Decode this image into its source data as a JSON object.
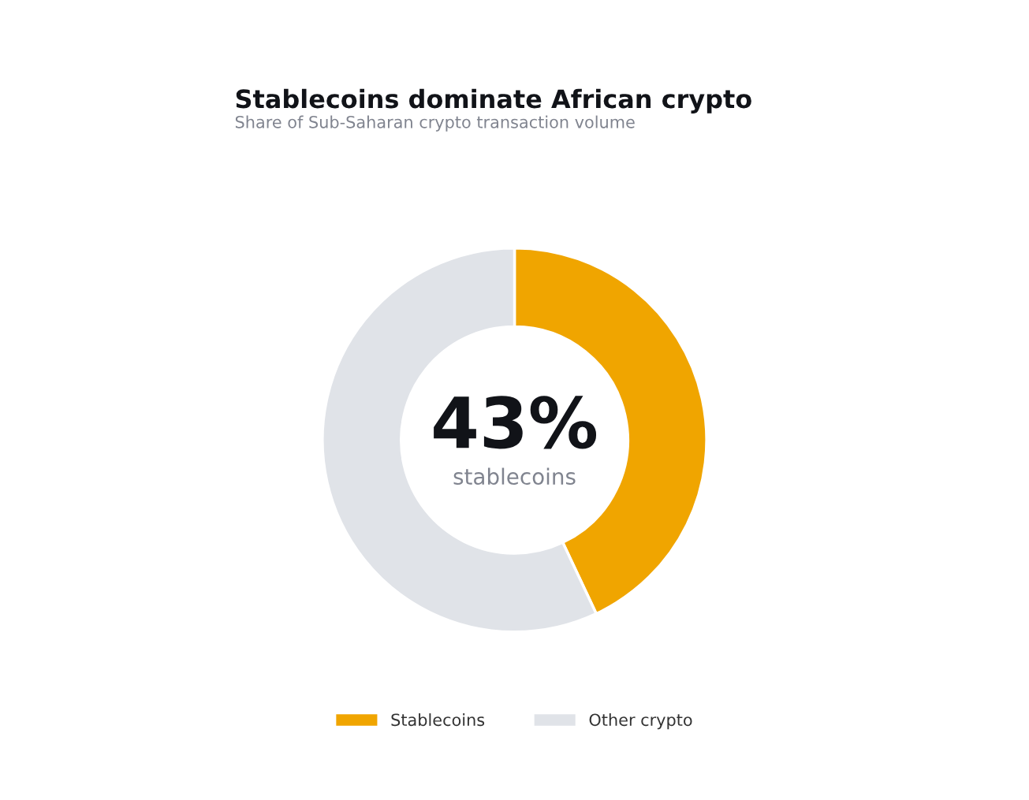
{
  "chart_data": {
    "type": "donut",
    "title": "Stablecoins dominate African crypto",
    "subtitle": "Share of Sub-Saharan crypto transaction volume",
    "categories": [
      "Stablecoins",
      "Other crypto"
    ],
    "values": [
      43,
      57
    ],
    "colors": [
      "#f0a500",
      "#e0e3e8"
    ],
    "annotations": [
      "43%",
      "stablecoins"
    ],
    "legend": "bottom"
  }
}
